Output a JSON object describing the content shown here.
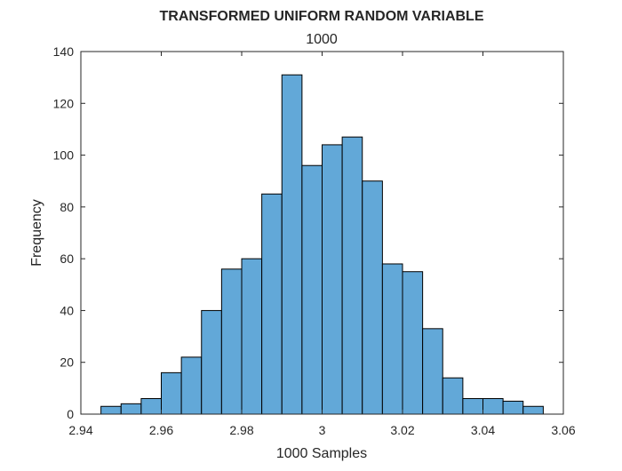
{
  "chart_data": {
    "type": "bar",
    "title": "TRANSFORMED UNIFORM RANDOM VARIABLE",
    "subtitle": "1000",
    "xlabel": "1000 Samples",
    "ylabel": "Frequency",
    "xlim": [
      2.94,
      3.06
    ],
    "ylim": [
      0,
      140
    ],
    "x_ticks": [
      "2.94",
      "2.96",
      "2.98",
      "3",
      "3.02",
      "3.04",
      "3.06"
    ],
    "y_ticks": [
      "0",
      "20",
      "40",
      "60",
      "80",
      "100",
      "120",
      "140"
    ],
    "bin_edges": [
      2.945,
      2.95,
      2.955,
      2.96,
      2.965,
      2.97,
      2.975,
      2.98,
      2.985,
      2.99,
      2.995,
      3.0,
      3.005,
      3.01,
      3.015,
      3.02,
      3.025,
      3.03,
      3.035,
      3.04,
      3.045,
      3.05,
      3.055
    ],
    "values": [
      3,
      4,
      6,
      16,
      22,
      40,
      56,
      60,
      85,
      131,
      96,
      104,
      107,
      90,
      58,
      55,
      33,
      14,
      6,
      6,
      5,
      3
    ],
    "bar_color": "#62a8d8",
    "edge_color": "#000000",
    "grid": false,
    "legend": "none"
  }
}
